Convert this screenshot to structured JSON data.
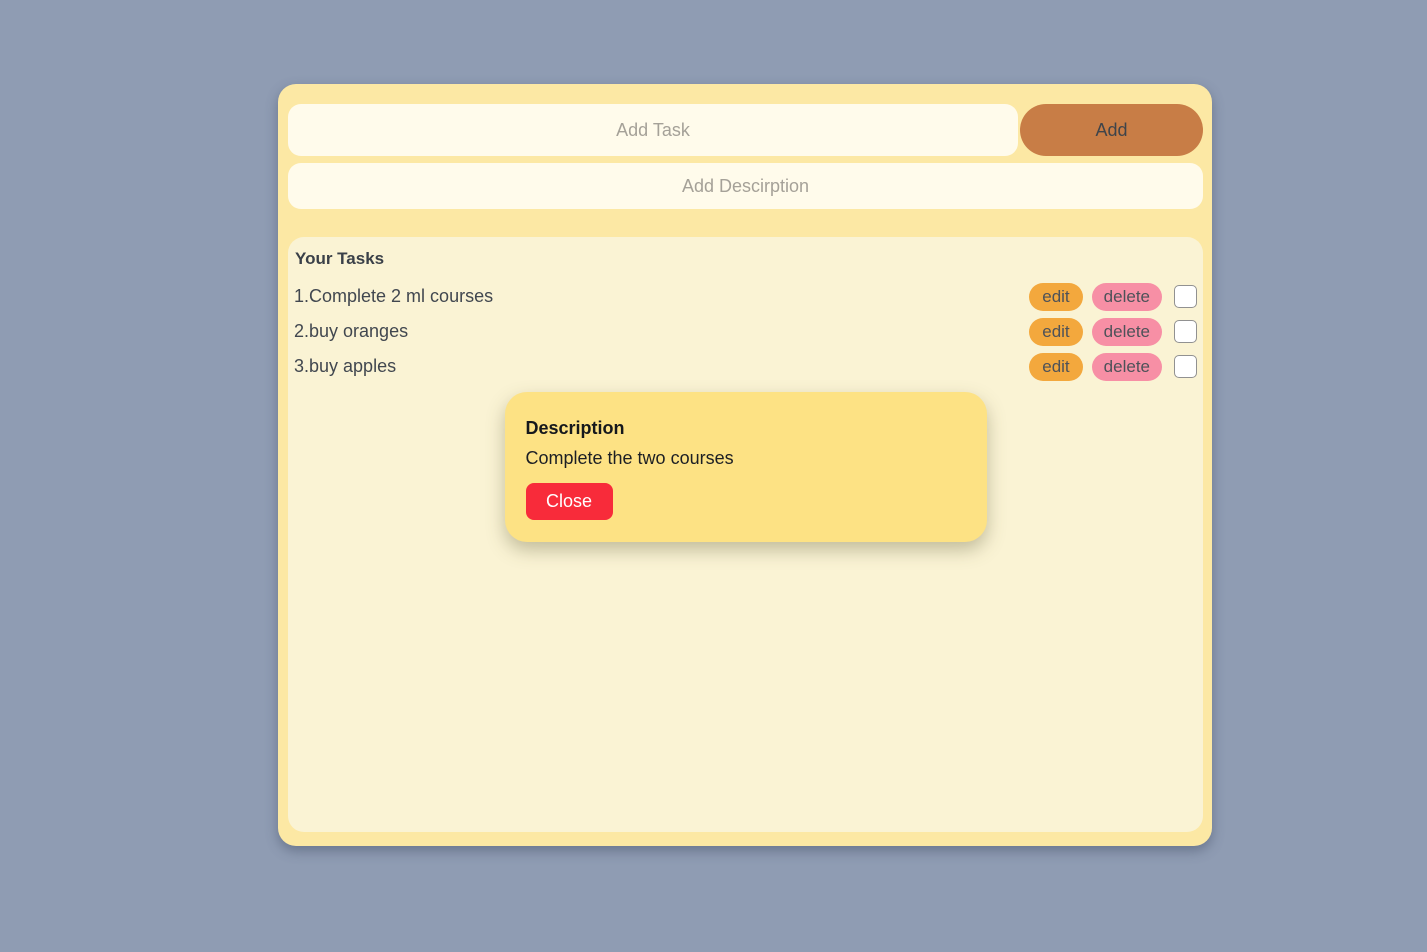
{
  "task_form": {
    "task_input_placeholder": "Add Task",
    "task_input_value": "",
    "add_button_label": "Add",
    "description_input_placeholder": "Add Descirption",
    "description_input_value": ""
  },
  "tasks_section": {
    "title": "Your Tasks",
    "items": [
      {
        "text": "1.Complete 2 ml courses",
        "edit_label": "edit",
        "delete_label": "delete",
        "checked": false
      },
      {
        "text": "2.buy oranges",
        "edit_label": "edit",
        "delete_label": "delete",
        "checked": false
      },
      {
        "text": "3.buy apples",
        "edit_label": "edit",
        "delete_label": "delete",
        "checked": false
      }
    ]
  },
  "description_modal": {
    "title": "Description",
    "body": "Complete the two courses",
    "close_button_label": "Close"
  },
  "colors": {
    "page_bg": "#8f9cb3",
    "card_bg": "#fce8a4",
    "input_bg": "#fffbeb",
    "add_button_bg": "#c87d46",
    "tasks_panel_bg": "#faf3d4",
    "edit_button_bg": "#f3a83d",
    "delete_button_bg": "#f78fa5",
    "modal_bg": "#fde284",
    "close_button_bg": "#f82b3a",
    "close_button_text": "#ffffff",
    "task_text": "#41474f",
    "placeholder_text": "#a5a198"
  }
}
